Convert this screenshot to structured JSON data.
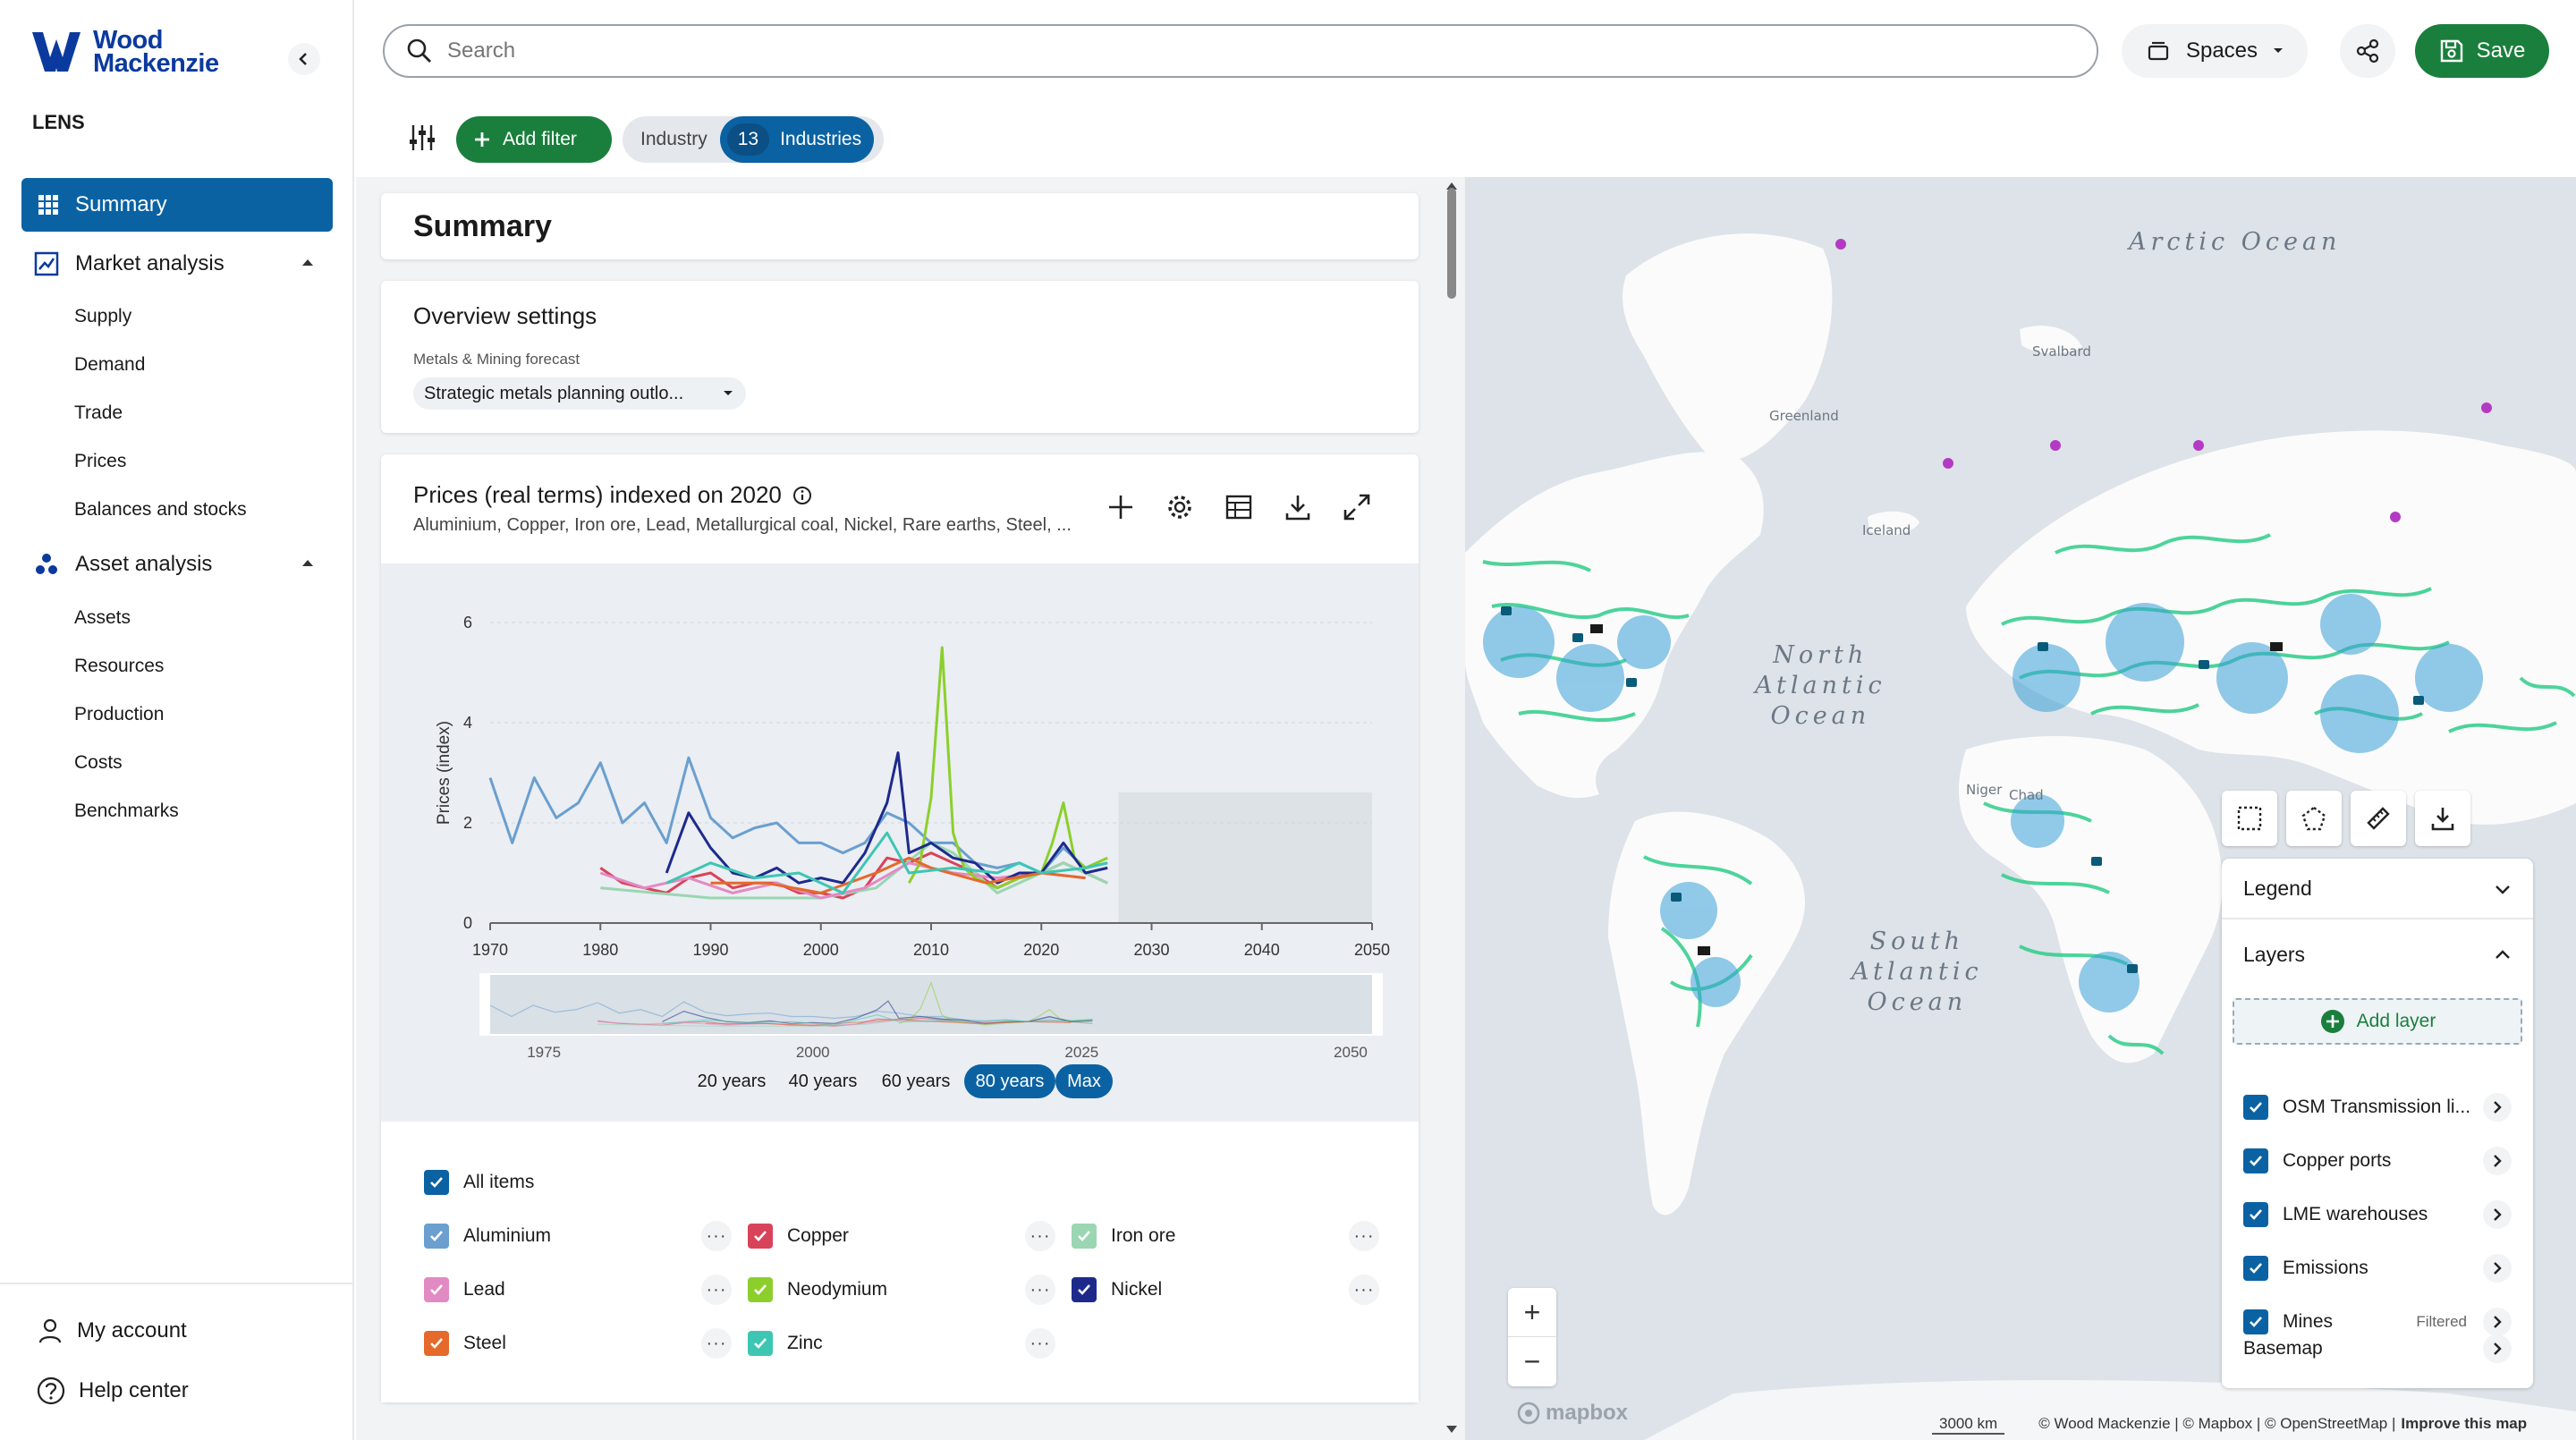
{
  "brand": {
    "logo_line1": "Wood",
    "logo_line2": "Mackenzie",
    "product": "LENS"
  },
  "nav": {
    "summary": "Summary",
    "market_analysis": {
      "label": "Market analysis",
      "items": [
        "Supply",
        "Demand",
        "Trade",
        "Prices",
        "Balances and stocks"
      ]
    },
    "asset_analysis": {
      "label": "Asset analysis",
      "items": [
        "Assets",
        "Resources",
        "Production",
        "Costs",
        "Benchmarks"
      ]
    },
    "bottom": {
      "account": "My account",
      "help": "Help center"
    }
  },
  "topbar": {
    "search_placeholder": "Search",
    "spaces_label": "Spaces",
    "save_label": "Save",
    "add_filter_label": "Add filter",
    "industry_label": "Industry",
    "industry_count": "13",
    "industry_value": "Industries"
  },
  "summary": {
    "title": "Summary"
  },
  "overview": {
    "title": "Overview settings",
    "forecast_label": "Metals & Mining forecast",
    "forecast_value": "Strategic metals planning outlo..."
  },
  "prices_chart": {
    "title": "Prices (real terms) indexed on 2020",
    "subtitle": "Aluminium, Copper, Iron ore, Lead, Metallurgical coal, Nickel, Rare earths, Steel, ...",
    "range_buttons": [
      "20 years",
      "40 years",
      "60 years",
      "80 years",
      "Max"
    ],
    "navigator_ticks": [
      "1975",
      "2000",
      "2025",
      "2050"
    ]
  },
  "chart_data": {
    "type": "line",
    "ylabel": "Prices (index)",
    "xlabel": "",
    "xlim": [
      1970,
      2050
    ],
    "ylim": [
      0,
      6
    ],
    "x_ticks": [
      1970,
      1980,
      1990,
      2000,
      2010,
      2020,
      2030,
      2040,
      2050
    ],
    "y_ticks": [
      0,
      2,
      4,
      6
    ],
    "series": [
      {
        "name": "Aluminium",
        "color": "#6a9fcf",
        "x": [
          1970,
          1972,
          1974,
          1976,
          1978,
          1980,
          1982,
          1984,
          1986,
          1988,
          1990,
          1992,
          1994,
          1996,
          1998,
          2000,
          2002,
          2004,
          2006,
          2008,
          2010,
          2012,
          2014,
          2016,
          2018,
          2020,
          2022,
          2024,
          2026
        ],
        "values": [
          2.9,
          1.6,
          2.9,
          2.1,
          2.4,
          3.2,
          2.0,
          2.4,
          1.6,
          3.3,
          2.1,
          1.7,
          1.9,
          2.0,
          1.6,
          1.6,
          1.4,
          1.6,
          2.2,
          2.0,
          1.6,
          1.6,
          1.2,
          1.1,
          1.2,
          1.0,
          1.5,
          1.1,
          1.2
        ]
      },
      {
        "name": "Copper",
        "color": "#d9435a",
        "x": [
          1980,
          1982,
          1984,
          1986,
          1988,
          1990,
          1992,
          1994,
          1996,
          1998,
          2000,
          2002,
          2004,
          2006,
          2008,
          2010,
          2012,
          2014,
          2016,
          2018,
          2020,
          2022,
          2024,
          2026
        ],
        "values": [
          1.1,
          0.8,
          0.7,
          0.6,
          0.9,
          1.0,
          0.7,
          0.8,
          0.8,
          0.6,
          0.6,
          0.5,
          0.7,
          1.3,
          1.2,
          1.4,
          1.2,
          1.0,
          0.7,
          0.9,
          1.0,
          1.2,
          1.0,
          0.8
        ]
      },
      {
        "name": "Iron ore",
        "color": "#9ad6b2",
        "x": [
          1980,
          1985,
          1990,
          1995,
          2000,
          2005,
          2010,
          2012,
          2014,
          2016,
          2018,
          2020,
          2022,
          2026
        ],
        "values": [
          0.7,
          0.6,
          0.5,
          0.5,
          0.5,
          0.7,
          1.6,
          1.4,
          1.0,
          0.6,
          0.8,
          1.0,
          1.2,
          0.8
        ]
      },
      {
        "name": "Lead",
        "color": "#e28ac4",
        "x": [
          1980,
          1984,
          1988,
          1992,
          1996,
          2000,
          2004,
          2008,
          2012,
          2016,
          2020,
          2024
        ],
        "values": [
          1.0,
          0.7,
          0.9,
          0.6,
          0.8,
          0.5,
          0.7,
          1.2,
          1.0,
          0.9,
          1.0,
          0.9
        ]
      },
      {
        "name": "Neodymium",
        "color": "#8ccf2c",
        "x": [
          2008,
          2009,
          2010,
          2011,
          2012,
          2013,
          2014,
          2016,
          2018,
          2020,
          2021,
          2022,
          2023,
          2024,
          2026
        ],
        "values": [
          0.8,
          1.2,
          2.5,
          5.5,
          1.8,
          1.1,
          0.9,
          0.7,
          0.9,
          1.0,
          1.6,
          2.4,
          1.3,
          1.1,
          1.3
        ]
      },
      {
        "name": "Nickel",
        "color": "#1d2a8c",
        "x": [
          1986,
          1988,
          1990,
          1992,
          1994,
          1996,
          1998,
          2000,
          2002,
          2004,
          2006,
          2007,
          2008,
          2010,
          2012,
          2014,
          2016,
          2018,
          2020,
          2022,
          2024,
          2026
        ],
        "values": [
          1.0,
          2.2,
          1.5,
          1.0,
          0.9,
          1.1,
          0.8,
          0.9,
          0.8,
          1.4,
          2.4,
          3.4,
          1.4,
          1.6,
          1.3,
          1.2,
          0.8,
          1.0,
          1.0,
          1.6,
          1.0,
          1.1
        ]
      },
      {
        "name": "Steel",
        "color": "#e4692b",
        "x": [
          1990,
          1995,
          2000,
          2005,
          2008,
          2010,
          2015,
          2020,
          2024
        ],
        "values": [
          0.8,
          0.8,
          0.6,
          1.0,
          1.3,
          1.1,
          0.8,
          1.0,
          0.9
        ]
      },
      {
        "name": "Zinc",
        "color": "#3dc6b3",
        "x": [
          1986,
          1990,
          1994,
          1998,
          2002,
          2006,
          2008,
          2012,
          2016,
          2018,
          2020,
          2024,
          2026
        ],
        "values": [
          0.8,
          1.2,
          0.9,
          1.0,
          0.6,
          1.8,
          1.0,
          1.1,
          1.0,
          1.2,
          1.0,
          1.1,
          1.2
        ]
      }
    ]
  },
  "chart_items": {
    "all": "All items",
    "list": [
      {
        "label": "Aluminium",
        "color": "#6a9fcf"
      },
      {
        "label": "Copper",
        "color": "#d9435a"
      },
      {
        "label": "Iron ore",
        "color": "#9ad6b2"
      },
      {
        "label": "Lead",
        "color": "#e28ac4"
      },
      {
        "label": "Neodymium",
        "color": "#8ccf2c"
      },
      {
        "label": "Nickel",
        "color": "#1d2a8c"
      },
      {
        "label": "Steel",
        "color": "#e4692b"
      },
      {
        "label": "Zinc",
        "color": "#3dc6b3"
      }
    ],
    "more": "···"
  },
  "map": {
    "labels": {
      "arctic": "Arctic Ocean",
      "north_atlantic": "North\nAtlantic\nOcean",
      "south_atlantic": "South\nAtlantic\nOcean",
      "greenland": "Greenland",
      "svalbard": "Svalbard",
      "iceland": "Iceland",
      "chad": "Chad",
      "niger": "Niger"
    },
    "legend_label": "Legend",
    "layers_label": "Layers",
    "add_layer": "Add layer",
    "layers": [
      {
        "label": "OSM Transmission li...",
        "note": ""
      },
      {
        "label": "Copper ports",
        "note": ""
      },
      {
        "label": "LME warehouses",
        "note": ""
      },
      {
        "label": "Emissions",
        "note": ""
      },
      {
        "label": "Mines",
        "note": "Filtered"
      }
    ],
    "basemap": "Basemap",
    "scale": "3000 km",
    "attribution": "© Wood Mackenzie | © Mapbox | © OpenStreetMap |",
    "improve": "Improve this map",
    "mapbox": "mapbox",
    "zoom_in": "+",
    "zoom_out": "−"
  },
  "colors": {
    "primary": "#0a62a3",
    "success": "#1a7f3c",
    "brand": "#0b3a9e"
  }
}
